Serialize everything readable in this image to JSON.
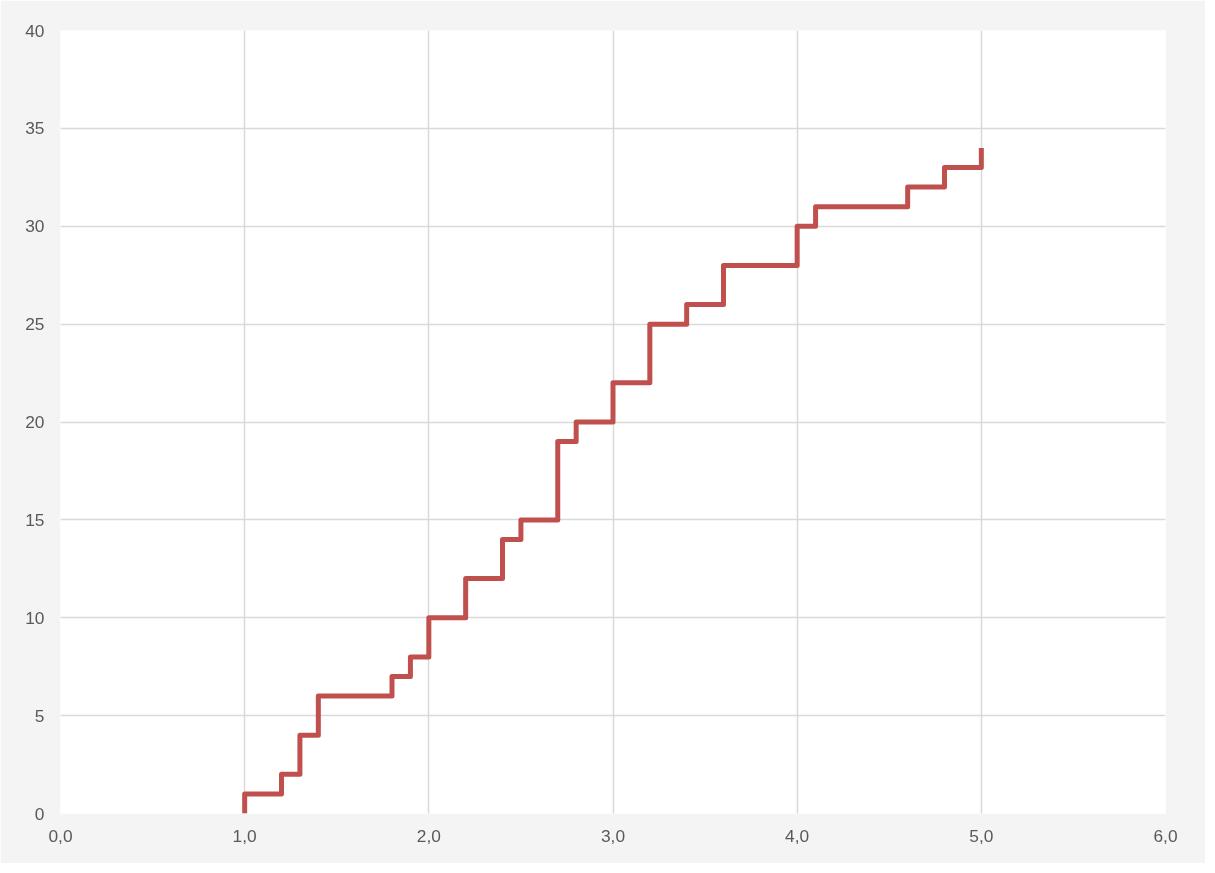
{
  "chart_data": {
    "type": "step",
    "x": [
      1.0,
      1.0,
      1.2,
      1.3,
      1.4,
      1.8,
      1.9,
      2.0,
      2.2,
      2.4,
      2.5,
      2.7,
      2.8,
      3.0,
      3.2,
      3.4,
      3.6,
      4.0,
      4.1,
      4.6,
      4.8,
      5.0
    ],
    "series": [
      {
        "color": "#c0504d",
        "values": [
          0,
          1,
          2,
          4,
          6,
          7,
          8,
          10,
          12,
          14,
          15,
          19,
          20,
          22,
          25,
          26,
          28,
          30,
          31,
          32,
          33,
          34
        ]
      }
    ],
    "xlim": [
      0,
      6
    ],
    "xticks": [
      {
        "value": 0,
        "label": "0,0"
      },
      {
        "value": 1,
        "label": "1,0"
      },
      {
        "value": 2,
        "label": "2,0"
      },
      {
        "value": 3,
        "label": "3,0"
      },
      {
        "value": 4,
        "label": "4,0"
      },
      {
        "value": 5,
        "label": "5,0"
      },
      {
        "value": 6,
        "label": "6,0"
      }
    ],
    "ylim": [
      0,
      40
    ],
    "yticks": [
      0,
      5,
      10,
      15,
      20,
      25,
      30,
      35,
      40
    ],
    "grid": true,
    "marker": "none",
    "line_style": "solid"
  }
}
